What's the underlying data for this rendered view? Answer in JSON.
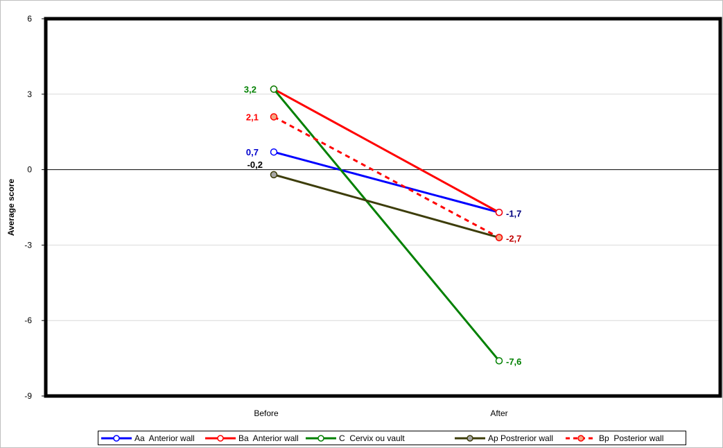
{
  "chart_data": {
    "type": "line",
    "xlabel": "",
    "ylabel": "Average score",
    "categories": [
      "Before",
      "After"
    ],
    "ylim": [
      -9,
      6
    ],
    "yticks": [
      6,
      3,
      0,
      -3,
      -6,
      -9
    ],
    "ytick_labels": [
      "6",
      "3",
      "0",
      "-3",
      "-6",
      "-9"
    ],
    "grid": true,
    "legend_position": "bottom",
    "series": [
      {
        "name": "Aa  Anterior wall",
        "values": [
          0.7,
          -1.7
        ],
        "color": "#0000ff",
        "dashed": false,
        "marker_fill": "#ffffff",
        "labels": [
          "0,7",
          "-1,7"
        ],
        "label_colors": [
          "#0000cc",
          "#000080"
        ]
      },
      {
        "name": "Ba  Anterior wall",
        "values": [
          3.2,
          -1.7
        ],
        "color": "#ff0000",
        "dashed": false,
        "marker_fill": "#ffffff",
        "labels": [
          "",
          ""
        ],
        "label_colors": [
          "#ff0000",
          "#ff0000"
        ]
      },
      {
        "name": "C  Cervix ou vault",
        "values": [
          3.2,
          -7.6
        ],
        "color": "#008000",
        "dashed": false,
        "marker_fill": "#ffffff",
        "labels": [
          "3,2",
          "-7,6"
        ],
        "label_colors": [
          "#008000",
          "#008000"
        ]
      },
      {
        "name": "Ap Postrerior wall",
        "values": [
          -0.2,
          -2.7
        ],
        "color": "#3d3d0a",
        "dashed": false,
        "marker_fill": "#a6a6a6",
        "labels": [
          "-0,2",
          ""
        ],
        "label_colors": [
          "#000000",
          "#000000"
        ]
      },
      {
        "name": "Bp  Posterior wall",
        "values": [
          2.1,
          -2.7
        ],
        "color": "#ff0000",
        "dashed": true,
        "marker_fill": "#f4a582",
        "labels": [
          "2,1",
          "-2,7"
        ],
        "label_colors": [
          "#ff0000",
          "#c00000"
        ]
      }
    ]
  }
}
